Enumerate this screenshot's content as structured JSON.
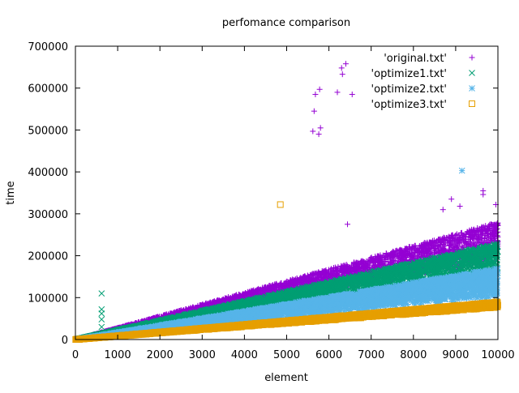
{
  "chart_data": {
    "type": "scatter",
    "title": "perfomance comparison",
    "xlabel": "element",
    "ylabel": "time",
    "xlim": [
      0,
      10000
    ],
    "ylim": [
      0,
      700000
    ],
    "x_ticks": [
      0,
      1000,
      2000,
      3000,
      4000,
      5000,
      6000,
      7000,
      8000,
      9000,
      10000
    ],
    "x_tick_labels": [
      "0",
      "1000",
      "2000",
      "3000",
      "4000",
      "5000",
      "6000",
      "7000",
      "8000",
      "9000",
      "10000"
    ],
    "y_ticks": [
      0,
      100000,
      200000,
      300000,
      400000,
      500000,
      600000,
      700000
    ],
    "y_tick_labels": [
      "0",
      "100000",
      "200000",
      "300000",
      "400000",
      "500000",
      "600000",
      "700000"
    ],
    "grid": false,
    "legend_position": "top-right",
    "series": [
      {
        "name": "'original.txt'",
        "marker": "plus",
        "color": "#9400d3",
        "bulk": {
          "x_range": [
            0,
            10000
          ],
          "slope_max": 28,
          "slope_min": 18,
          "samples_per_100": 40
        },
        "points": [
          {
            "x": 5650,
            "y": 545000
          },
          {
            "x": 5680,
            "y": 585000
          },
          {
            "x": 5780,
            "y": 597000
          },
          {
            "x": 5620,
            "y": 497000
          },
          {
            "x": 5760,
            "y": 490000
          },
          {
            "x": 5800,
            "y": 505000
          },
          {
            "x": 6200,
            "y": 590000
          },
          {
            "x": 6300,
            "y": 648000
          },
          {
            "x": 6320,
            "y": 633000
          },
          {
            "x": 6400,
            "y": 658000
          },
          {
            "x": 6550,
            "y": 585000
          },
          {
            "x": 6440,
            "y": 275000
          },
          {
            "x": 8700,
            "y": 310000
          },
          {
            "x": 8900,
            "y": 335000
          },
          {
            "x": 9650,
            "y": 355000
          },
          {
            "x": 9650,
            "y": 346000
          },
          {
            "x": 9950,
            "y": 322000
          },
          {
            "x": 9100,
            "y": 318000
          }
        ]
      },
      {
        "name": "'optimize1.txt'",
        "marker": "cross",
        "color": "#009e73",
        "bulk": {
          "x_range": [
            0,
            10000
          ],
          "slope_max": 23,
          "slope_min": 15,
          "samples_per_100": 40
        },
        "points": [
          {
            "x": 620,
            "y": 110000
          },
          {
            "x": 620,
            "y": 72000
          },
          {
            "x": 620,
            "y": 62000
          },
          {
            "x": 620,
            "y": 48000
          },
          {
            "x": 620,
            "y": 30000
          }
        ]
      },
      {
        "name": "'optimize2.txt'",
        "marker": "star",
        "color": "#56b4e9",
        "bulk": {
          "x_range": [
            0,
            10000
          ],
          "slope_max": 17,
          "slope_min": 10,
          "samples_per_100": 40
        },
        "points": [
          {
            "x": 9150,
            "y": 403000
          }
        ]
      },
      {
        "name": "'optimize3.txt'",
        "marker": "square",
        "color": "#e69f00",
        "bulk": {
          "x_range": [
            0,
            10000
          ],
          "slope_max": 9,
          "slope_min": 7.6,
          "samples_per_100": 40
        },
        "points": [
          {
            "x": 4850,
            "y": 322000
          }
        ]
      }
    ]
  }
}
